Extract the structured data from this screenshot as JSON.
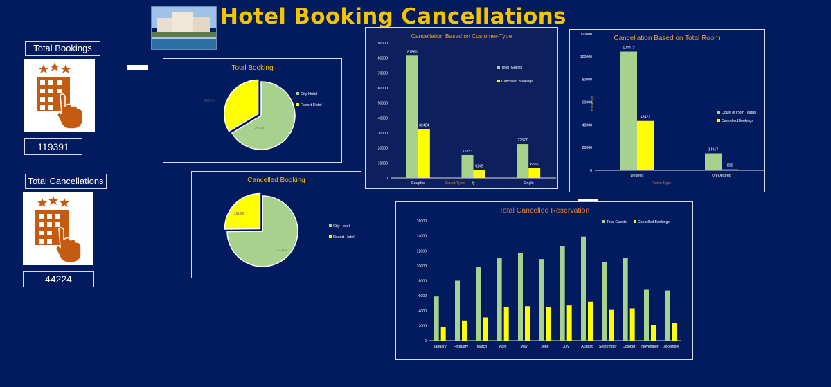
{
  "header": {
    "title": "Hotel Booking Cancellations"
  },
  "kpis": {
    "total_bookings_label": "Total Bookings",
    "total_bookings_value": "119391",
    "total_cancellations_label": "Total Cancellations",
    "total_cancellations_value": "44224"
  },
  "colors": {
    "green": "#a9d18e",
    "yellow": "#ffff00",
    "orange_icon": "#c55a11",
    "title": "#f5c400"
  },
  "chart_data": [
    {
      "id": "pie_total",
      "type": "pie",
      "title": "Total Booking",
      "categories": [
        "City Hotel",
        "Resort Hotel"
      ],
      "values": [
        79330,
        40060
      ],
      "labels": [
        "79330",
        "40060"
      ]
    },
    {
      "id": "pie_cancelled",
      "type": "pie",
      "title": "Cancelled Booking",
      "categories": [
        "City Hotel",
        "Resort Hotel"
      ],
      "values": [
        33102,
        11122
      ],
      "labels": [
        "33102",
        "11122"
      ]
    },
    {
      "id": "bar_customer",
      "type": "bar",
      "title": "Cancellation Based on Customer-Type",
      "xlabel": "Guest Type",
      "categories": [
        "Couples",
        "Family",
        "Single"
      ],
      "tick_labels": [
        "Couples",
        "ly",
        "Single"
      ],
      "series": [
        {
          "name": "Total_Guests",
          "values": [
            81560,
            15253,
            22577
          ]
        },
        {
          "name": "Cancelled Bookings",
          "values": [
            32424,
            5245,
            6555
          ]
        }
      ],
      "ylim": [
        0,
        90000
      ],
      "yticks": [
        0,
        10000,
        20000,
        30000,
        40000,
        50000,
        60000,
        70000,
        80000,
        90000
      ],
      "legend": "right"
    },
    {
      "id": "bar_room",
      "type": "bar",
      "title": "Cancellation Based on Total Room",
      "xlabel": "Room Type",
      "ylabel": "Bookings",
      "categories": [
        "Desired",
        "Un-Desired"
      ],
      "series": [
        {
          "name": "Count of room_status",
          "values": [
            104473,
            14917
          ]
        },
        {
          "name": "Cancelled Bookings",
          "values": [
            43422,
            802
          ]
        }
      ],
      "ylim": [
        0,
        120000
      ],
      "yticks": [
        0,
        20000,
        40000,
        60000,
        80000,
        100000,
        120000
      ],
      "legend": "right"
    },
    {
      "id": "bar_monthly",
      "type": "bar",
      "title": "Total Cancelled Reservation",
      "categories": [
        "January",
        "February",
        "March",
        "April",
        "May",
        "June",
        "July",
        "August",
        "September",
        "October",
        "November",
        "December"
      ],
      "series": [
        {
          "name": "Total Guests",
          "values": [
            5900,
            8000,
            9800,
            11000,
            11700,
            10900,
            12600,
            13900,
            10500,
            11100,
            6800,
            6700
          ]
        },
        {
          "name": "Cancelled Bookings",
          "values": [
            1800,
            2700,
            3100,
            4500,
            4600,
            4500,
            4700,
            5200,
            4100,
            4300,
            2100,
            2400
          ]
        }
      ],
      "ylim": [
        0,
        16000
      ],
      "yticks": [
        0,
        2000,
        4000,
        6000,
        8000,
        10000,
        12000,
        14000,
        16000
      ],
      "legend": "top"
    }
  ]
}
